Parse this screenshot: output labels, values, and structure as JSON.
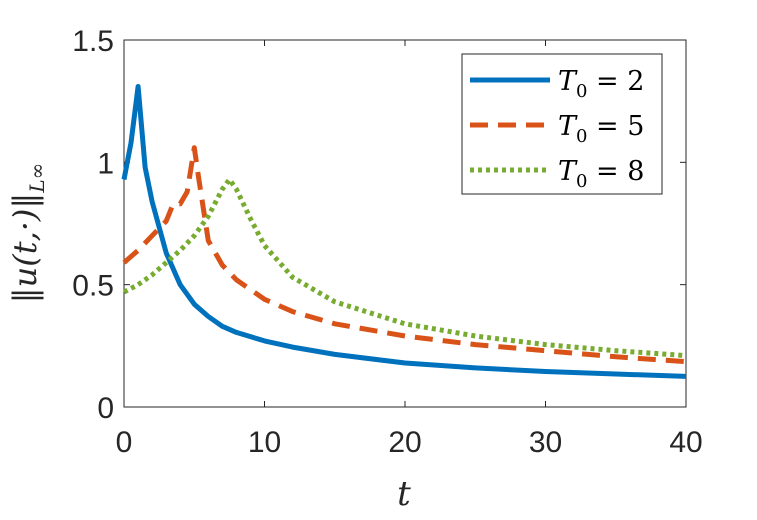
{
  "chart_data": {
    "type": "line",
    "xlabel": "t",
    "ylabel": "‖u(t,·)‖",
    "ylabel_subscript": "L∞",
    "xlim": [
      0,
      40
    ],
    "ylim": [
      0,
      1.5
    ],
    "x_ticks": [
      "0",
      "10",
      "20",
      "30",
      "40"
    ],
    "y_ticks": [
      "0",
      "0.5",
      "1",
      "1.5"
    ],
    "grid": false,
    "legend_position": "top-right",
    "series": [
      {
        "name": "T0 = 2",
        "name_main": "T",
        "name_sub": "0",
        "name_rest": " = 2",
        "color": "#0072BD",
        "style": "solid",
        "x": [
          0,
          0.5,
          1,
          1.5,
          2,
          3,
          4,
          5,
          6,
          7,
          8,
          10,
          12,
          15,
          20,
          25,
          30,
          35,
          40
        ],
        "y": [
          0.93,
          1.08,
          1.31,
          0.98,
          0.84,
          0.63,
          0.5,
          0.42,
          0.37,
          0.33,
          0.305,
          0.27,
          0.245,
          0.215,
          0.18,
          0.16,
          0.145,
          0.135,
          0.125
        ]
      },
      {
        "name": "T0 = 5",
        "name_main": "T",
        "name_sub": "0",
        "name_rest": " = 5",
        "color": "#D95319",
        "style": "dashed",
        "x": [
          0,
          1,
          2,
          3,
          3.5,
          4,
          4.5,
          5,
          5.3,
          6,
          7,
          8,
          10,
          12,
          15,
          20,
          25,
          30,
          35,
          40
        ],
        "y": [
          0.59,
          0.64,
          0.7,
          0.76,
          0.83,
          0.83,
          0.88,
          1.06,
          0.94,
          0.68,
          0.58,
          0.52,
          0.44,
          0.39,
          0.34,
          0.29,
          0.255,
          0.23,
          0.205,
          0.185
        ]
      },
      {
        "name": "T0 = 8",
        "name_main": "T",
        "name_sub": "0",
        "name_rest": " = 8",
        "color": "#77AC30",
        "style": "dotted",
        "x": [
          0,
          1,
          2,
          3,
          4,
          5,
          6,
          7,
          7.5,
          8,
          9,
          10,
          12,
          15,
          20,
          25,
          30,
          35,
          40
        ],
        "y": [
          0.47,
          0.5,
          0.54,
          0.59,
          0.64,
          0.7,
          0.78,
          0.89,
          0.93,
          0.89,
          0.77,
          0.66,
          0.53,
          0.43,
          0.34,
          0.29,
          0.255,
          0.23,
          0.21
        ]
      }
    ]
  }
}
